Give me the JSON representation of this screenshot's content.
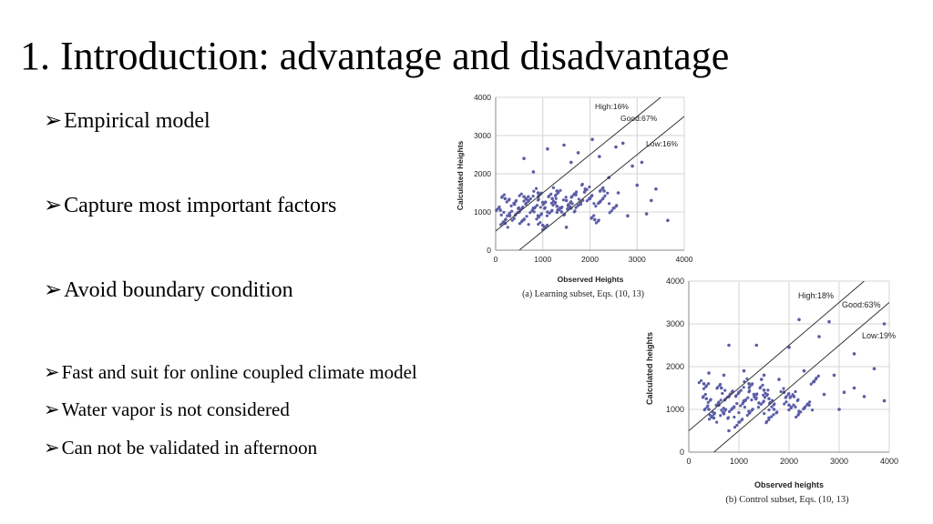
{
  "slide": {
    "title": "1. Introduction: advantage and disadvantage",
    "bullet_glyph": "➢",
    "bullets": [
      "Empirical model",
      "Capture most important factors",
      "Avoid boundary condition",
      "Fast and suit for online coupled climate model",
      "Water vapor is not considered",
      "Can not be validated in afternoon"
    ]
  },
  "chart_data": [
    {
      "type": "scatter",
      "title": "",
      "xlabel": "Observed Heights",
      "ylabel": "Calculated Heights",
      "caption": "(a) Learning subset, Eqs. (10, 13)",
      "xlim": [
        0,
        4000
      ],
      "ylim": [
        0,
        4000
      ],
      "xticks": [
        "0",
        "1000",
        "2000",
        "3000",
        "4000"
      ],
      "yticks": [
        "0",
        "1000",
        "2000",
        "3000",
        "4000"
      ],
      "grid": true,
      "annotations": [
        "High:16%",
        "Good:67%",
        "Low:16%"
      ],
      "reference_lines": [
        {
          "name": "upper",
          "points": [
            [
              0,
              500
            ],
            [
              3500,
              4000
            ]
          ]
        },
        {
          "name": "lower",
          "points": [
            [
              500,
              0
            ],
            [
              4000,
              3500
            ]
          ]
        }
      ],
      "point_color": "#5b5ea6",
      "points": [
        [
          3650,
          780
        ],
        [
          3300,
          1300
        ],
        [
          3100,
          2300
        ],
        [
          2700,
          2800
        ],
        [
          2550,
          2700
        ],
        [
          2050,
          2900
        ],
        [
          1750,
          2550
        ],
        [
          1450,
          2750
        ],
        [
          1100,
          2650
        ],
        [
          600,
          2400
        ],
        [
          2900,
          2200
        ],
        [
          2200,
          2450
        ],
        [
          1600,
          2300
        ],
        [
          800,
          2050
        ],
        [
          2400,
          1900
        ],
        [
          3000,
          1700
        ],
        [
          2600,
          1500
        ],
        [
          1900,
          1600
        ],
        [
          1300,
          1550
        ],
        [
          900,
          1500
        ],
        [
          600,
          1400
        ],
        [
          200,
          1350
        ],
        [
          100,
          1050
        ],
        [
          200,
          700
        ],
        [
          300,
          900
        ],
        [
          400,
          1200
        ],
        [
          500,
          1000
        ],
        [
          600,
          800
        ],
        [
          700,
          1300
        ],
        [
          800,
          1100
        ],
        [
          900,
          900
        ],
        [
          1000,
          1250
        ],
        [
          1100,
          1000
        ],
        [
          1200,
          1350
        ],
        [
          1300,
          1150
        ],
        [
          1400,
          1000
        ],
        [
          1500,
          1300
        ],
        [
          1600,
          1100
        ],
        [
          1700,
          1450
        ],
        [
          1800,
          1200
        ],
        [
          2000,
          1350
        ],
        [
          2200,
          1250
        ],
        [
          2500,
          1100
        ],
        [
          2800,
          900
        ],
        [
          3200,
          950
        ],
        [
          3400,
          1600
        ],
        [
          1500,
          600
        ],
        [
          1000,
          650
        ],
        [
          2100,
          800
        ],
        [
          2300,
          1550
        ]
      ]
    },
    {
      "type": "scatter",
      "title": "",
      "xlabel": "Observed heights",
      "ylabel": "Calculated heights",
      "caption": "(b) Control subset, Eqs. (10, 13)",
      "xlim": [
        0,
        4000
      ],
      "ylim": [
        0,
        4000
      ],
      "xticks": [
        "0",
        "1000",
        "2000",
        "3000",
        "4000"
      ],
      "yticks": [
        "0",
        "1000",
        "2000",
        "3000",
        "4000"
      ],
      "grid": true,
      "annotations": [
        "High:18%",
        "Good:63%",
        "Low:19%"
      ],
      "reference_lines": [
        {
          "name": "upper",
          "points": [
            [
              0,
              500
            ],
            [
              3500,
              4000
            ]
          ]
        },
        {
          "name": "lower",
          "points": [
            [
              500,
              0
            ],
            [
              4000,
              3500
            ]
          ]
        }
      ],
      "point_color": "#5b5ea6",
      "points": [
        [
          3900,
          3000
        ],
        [
          2800,
          3050
        ],
        [
          2200,
          3100
        ],
        [
          1350,
          2500
        ],
        [
          800,
          2500
        ],
        [
          2000,
          2450
        ],
        [
          2600,
          2700
        ],
        [
          3300,
          2300
        ],
        [
          3700,
          1950
        ],
        [
          3900,
          1200
        ],
        [
          3500,
          1300
        ],
        [
          3100,
          1400
        ],
        [
          2900,
          1800
        ],
        [
          2500,
          1650
        ],
        [
          2300,
          1900
        ],
        [
          1800,
          1700
        ],
        [
          1500,
          1800
        ],
        [
          1100,
          1900
        ],
        [
          700,
          1800
        ],
        [
          400,
          1850
        ],
        [
          300,
          1600
        ],
        [
          350,
          1250
        ],
        [
          400,
          1000
        ],
        [
          500,
          800
        ],
        [
          600,
          1100
        ],
        [
          700,
          900
        ],
        [
          800,
          1300
        ],
        [
          900,
          1050
        ],
        [
          1000,
          1400
        ],
        [
          1100,
          1200
        ],
        [
          1200,
          950
        ],
        [
          1300,
          1350
        ],
        [
          1400,
          1150
        ],
        [
          1500,
          1450
        ],
        [
          1600,
          1250
        ],
        [
          1700,
          1000
        ],
        [
          1900,
          1400
        ],
        [
          2100,
          1300
        ],
        [
          2400,
          1100
        ],
        [
          2700,
          1350
        ],
        [
          3000,
          1000
        ],
        [
          3300,
          1500
        ],
        [
          1000,
          700
        ],
        [
          1600,
          800
        ],
        [
          2200,
          950
        ],
        [
          800,
          500
        ],
        [
          1200,
          1600
        ],
        [
          2000,
          1100
        ],
        [
          1450,
          1700
        ],
        [
          650,
          1500
        ]
      ]
    }
  ]
}
